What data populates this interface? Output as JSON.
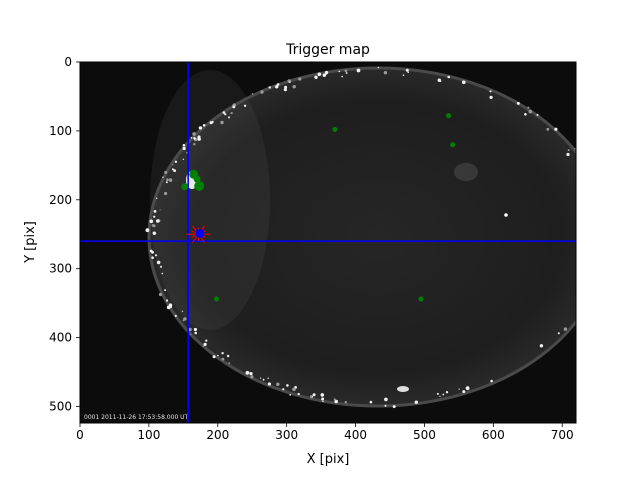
{
  "chart_data": {
    "type": "scatter",
    "title": "Trigger map",
    "xlabel": "X [pix]",
    "ylabel": "Y [pix]",
    "xlim": [
      0,
      720
    ],
    "ylim": [
      524,
      0
    ],
    "y_inverted": true,
    "x_ticks": [
      0,
      100,
      200,
      300,
      400,
      500,
      600,
      700
    ],
    "y_ticks": [
      0,
      100,
      200,
      300,
      400,
      500
    ],
    "background": "all-sky camera frame (grayscale fisheye)",
    "image_timestamp_text": "0001 2011-11-26 17:53:58.000 UT",
    "crosshair": {
      "x": 157,
      "y": 260,
      "color": "#0000ff"
    },
    "series": [
      {
        "marker": "circle",
        "color": "#008000",
        "points": [
          {
            "x": 370,
            "y": 98,
            "size": 2.5
          },
          {
            "x": 535,
            "y": 78,
            "size": 2.5
          },
          {
            "x": 541,
            "y": 120,
            "size": 2.5
          },
          {
            "x": 165,
            "y": 163,
            "size": 4.5
          },
          {
            "x": 170,
            "y": 170,
            "size": 3.5
          },
          {
            "x": 152,
            "y": 181,
            "size": 3.5
          },
          {
            "x": 173,
            "y": 180,
            "size": 5
          },
          {
            "x": 198,
            "y": 344,
            "size": 2.5
          },
          {
            "x": 495,
            "y": 344,
            "size": 2.5
          }
        ]
      },
      {
        "marker": "star-burst",
        "color": "#ff0000",
        "points": [
          {
            "x": 172,
            "y": 250
          }
        ]
      },
      {
        "marker": "circle",
        "color": "#0000ff",
        "points": [
          {
            "x": 174,
            "y": 249
          }
        ]
      }
    ]
  }
}
